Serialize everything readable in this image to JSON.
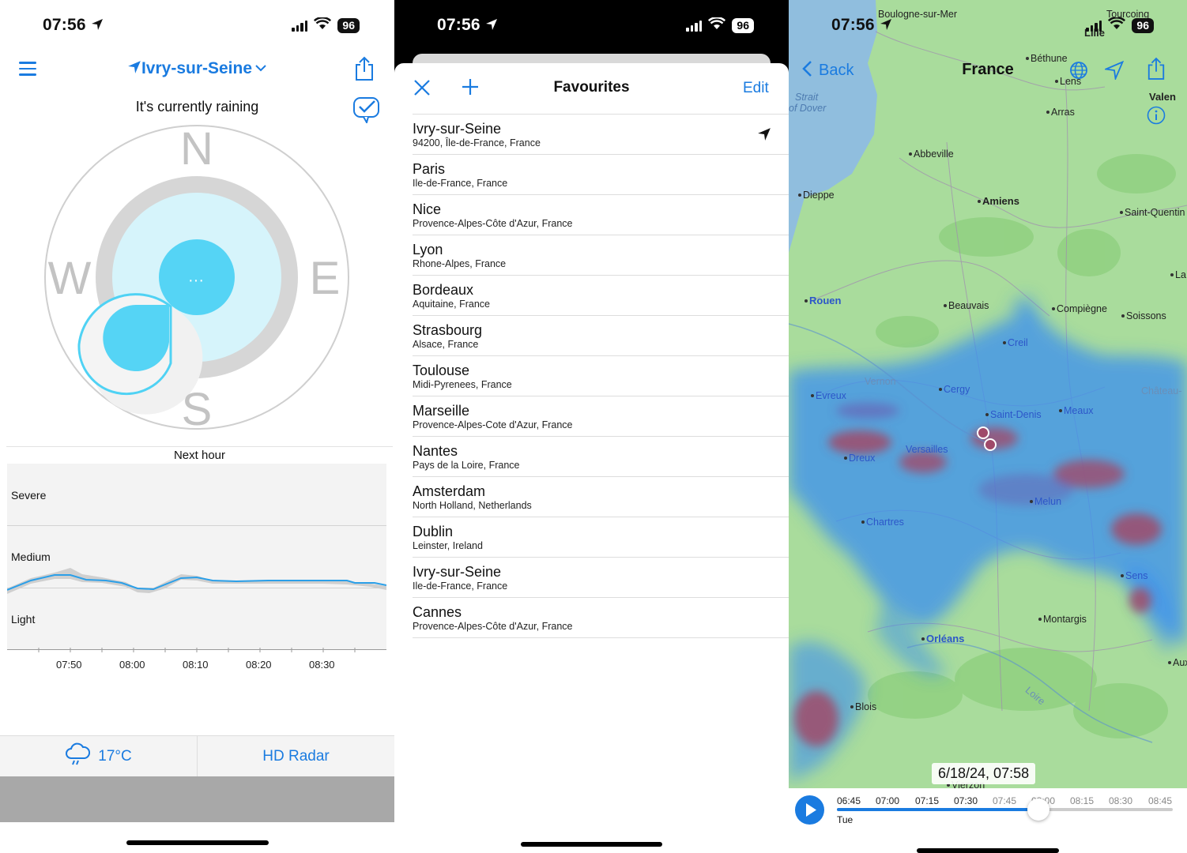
{
  "status_bar": {
    "time": "07:56",
    "battery": "96"
  },
  "panel1": {
    "city": "Ivry-sur-Seine",
    "status_text": "It's currently raining",
    "compass": {
      "north": "N",
      "south": "S",
      "east": "E",
      "west": "W",
      "center": "···"
    },
    "next_hour_label": "Next hour",
    "intensity_levels": [
      "Severe",
      "Medium",
      "Light"
    ],
    "x_ticks": [
      "07:50",
      "08:00",
      "08:10",
      "08:20",
      "08:30"
    ],
    "temperature": "17°C",
    "radar_button": "HD Radar",
    "icons": [
      "hamburger-menu-icon",
      "location-arrow-icon",
      "chevron-down-icon",
      "share-icon",
      "checkmark-bubble-icon",
      "rain-cloud-icon"
    ]
  },
  "panel2": {
    "title": "Favourites",
    "edit_label": "Edit",
    "favourites": [
      {
        "name": "Ivry-sur-Seine",
        "sub": "94200, Île-de-France, France",
        "current": true
      },
      {
        "name": "Paris",
        "sub": "Ile-de-France, France"
      },
      {
        "name": "Nice",
        "sub": "Provence-Alpes-Côte d'Azur, France"
      },
      {
        "name": "Lyon",
        "sub": "Rhone-Alpes, France"
      },
      {
        "name": "Bordeaux",
        "sub": "Aquitaine, France"
      },
      {
        "name": "Strasbourg",
        "sub": "Alsace, France"
      },
      {
        "name": "Toulouse",
        "sub": "Midi-Pyrenees, France"
      },
      {
        "name": "Marseille",
        "sub": "Provence-Alpes-Cote d'Azur, France"
      },
      {
        "name": "Nantes",
        "sub": "Pays de la Loire, France"
      },
      {
        "name": "Amsterdam",
        "sub": "North Holland, Netherlands"
      },
      {
        "name": "Dublin",
        "sub": "Leinster, Ireland"
      },
      {
        "name": "Ivry-sur-Seine",
        "sub": "Ile-de-France, France"
      },
      {
        "name": "Cannes",
        "sub": "Provence-Alpes-Côte d'Azur, France"
      }
    ]
  },
  "panel3": {
    "back_label": "Back",
    "title": "France",
    "datetime": "6/18/24, 07:58",
    "day": "Tue",
    "timeline": [
      "06:45",
      "07:00",
      "07:15",
      "07:30",
      "07:45",
      "08:00",
      "08:15",
      "08:30",
      "08:45"
    ],
    "timeline_position": "07:58",
    "map_labels": {
      "boulogne": "Boulogne-sur-Mer",
      "tourcoing": "Tourcoing",
      "lille": "Lille",
      "bethune": "Béthune",
      "lens": "Lens",
      "strait1": "Strait",
      "strait2": "of Dover",
      "valen": "Valen",
      "arras": "Arras",
      "abbeville": "Abbeville",
      "dieppe": "Dieppe",
      "amiens": "Amiens",
      "saintquentin": "Saint-Quentin",
      "la": "La",
      "rouen": "Rouen",
      "beauvais": "Beauvais",
      "compiegne": "Compiègne",
      "soissons": "Soissons",
      "creil": "Creil",
      "vernon": "Vernon",
      "evreux": "Evreux",
      "cergy": "Cergy",
      "chateau": "Château-",
      "saintdenis": "Saint-Denis",
      "meaux": "Meaux",
      "dreux": "Dreux",
      "versailles": "Versailles",
      "melun": "Melun",
      "chartres": "Chartres",
      "sens": "Sens",
      "montargis": "Montargis",
      "orleans": "Orléans",
      "auxe": "Auxe",
      "loire": "Loire",
      "blois": "Blois",
      "vierzon": "Vierzon"
    }
  }
}
